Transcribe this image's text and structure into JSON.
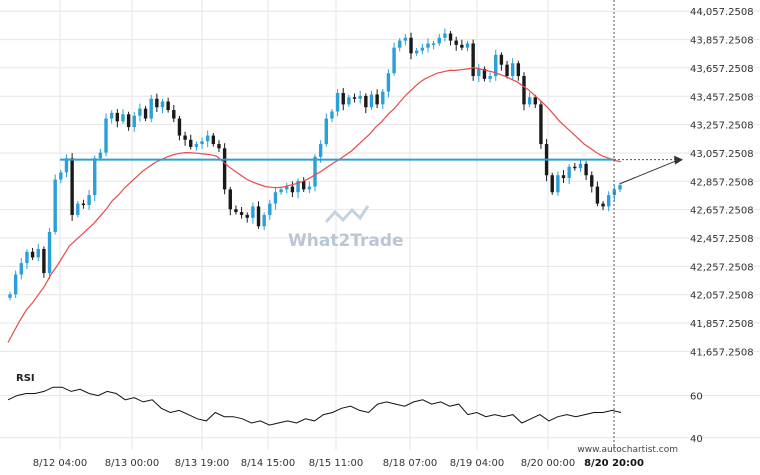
{
  "chart_data": [
    {
      "type": "candlestick",
      "y_ticks": [
        "44,057.2508",
        "43,857.2508",
        "43,657.2508",
        "43,457.2508",
        "43,257.2508",
        "43,057.2508",
        "42,857.2508",
        "42,657.2508",
        "42,457.2508",
        "42,257.2508",
        "42,057.2508",
        "41,857.2508",
        "41,657.2508"
      ],
      "ylim": [
        41540,
        44080
      ],
      "x_ticks": [
        "8/12 04:00",
        "8/13 00:00",
        "8/13 19:00",
        "8/14 15:00",
        "8/15 11:00",
        "8/18 07:00",
        "8/19 04:00",
        "8/20 00:00",
        "8/20 20:00"
      ],
      "x_highlight": "8/20 20:00",
      "resistance_level": 43010,
      "forecast": {
        "from": 42840,
        "to": 43010
      },
      "close": [
        42060,
        42200,
        42280,
        42360,
        42320,
        42380,
        42210,
        42500,
        42870,
        42920,
        43020,
        42620,
        42700,
        42690,
        42760,
        43020,
        43060,
        43300,
        43340,
        43280,
        43330,
        43240,
        43320,
        43370,
        43300,
        43440,
        43380,
        43420,
        43360,
        43300,
        43180,
        43150,
        43100,
        43120,
        43140,
        43180,
        43120,
        43090,
        42800,
        42660,
        42640,
        42620,
        42600,
        42680,
        42540,
        42620,
        42700,
        42780,
        42800,
        42820,
        42780,
        42860,
        42800,
        42820,
        43030,
        43120,
        43300,
        43350,
        43480,
        43400,
        43450,
        43440,
        43460,
        43380,
        43470,
        43400,
        43490,
        43620,
        43800,
        43850,
        43870,
        43760,
        43780,
        43800,
        43830,
        43830,
        43870,
        43900,
        43850,
        43820,
        43800,
        43830,
        43600,
        43650,
        43580,
        43600,
        43750,
        43680,
        43600,
        43690,
        43600,
        43400,
        43450,
        43400,
        43120,
        42900,
        42780,
        42900,
        42880,
        42960,
        42950,
        42980,
        42900,
        42820,
        42700,
        42680,
        42760,
        42800,
        42830
      ],
      "ma": [
        41720,
        41800,
        41880,
        41950,
        42000,
        42060,
        42120,
        42200,
        42260,
        42330,
        42400,
        42440,
        42480,
        42520,
        42560,
        42610,
        42660,
        42720,
        42760,
        42810,
        42850,
        42890,
        42930,
        42960,
        42990,
        43010,
        43030,
        43045,
        43055,
        43060,
        43058,
        43055,
        43050,
        43045,
        43035,
        43000,
        42960,
        42930,
        42900,
        42870,
        42850,
        42835,
        42820,
        42815,
        42812,
        42818,
        42830,
        42840,
        42855,
        42875,
        42900,
        42925,
        42955,
        42985,
        43010,
        43040,
        43070,
        43110,
        43150,
        43190,
        43240,
        43280,
        43330,
        43370,
        43420,
        43470,
        43510,
        43550,
        43580,
        43600,
        43620,
        43630,
        43640,
        43640,
        43645,
        43650,
        43660,
        43650,
        43640,
        43630,
        43615,
        43600,
        43580,
        43560,
        43530,
        43500,
        43460,
        43420,
        43380,
        43330,
        43280,
        43240,
        43200,
        43160,
        43120,
        43090,
        43060,
        43035,
        43020,
        43005,
        42995
      ]
    },
    {
      "type": "line",
      "title": "RSI",
      "y_ticks": [
        "60",
        "40"
      ],
      "ylim": [
        38,
        75
      ],
      "values": [
        58,
        60,
        61,
        61,
        62,
        64,
        64,
        62,
        63,
        61,
        60,
        62,
        61,
        58,
        59,
        57,
        58,
        54,
        52,
        53,
        51,
        49,
        48,
        52,
        50,
        50,
        49,
        47,
        48,
        46,
        47,
        48,
        47,
        49,
        48,
        51,
        52,
        54,
        55,
        53,
        52,
        56,
        57,
        56,
        55,
        57,
        58,
        56,
        57,
        55,
        56,
        51,
        52,
        50,
        51,
        50,
        51,
        47,
        49,
        51,
        48,
        50,
        51,
        50,
        51,
        52,
        52,
        53,
        52
      ]
    }
  ],
  "watermark": "What2Trade",
  "credit": "www.autochartist.com",
  "colors": {
    "up": "#2b9fd8",
    "down": "#1a1a1a",
    "ma": "#e84a4a",
    "level": "#2b9fd8",
    "forecast": "#333333",
    "grid": "#e6e6e6"
  }
}
